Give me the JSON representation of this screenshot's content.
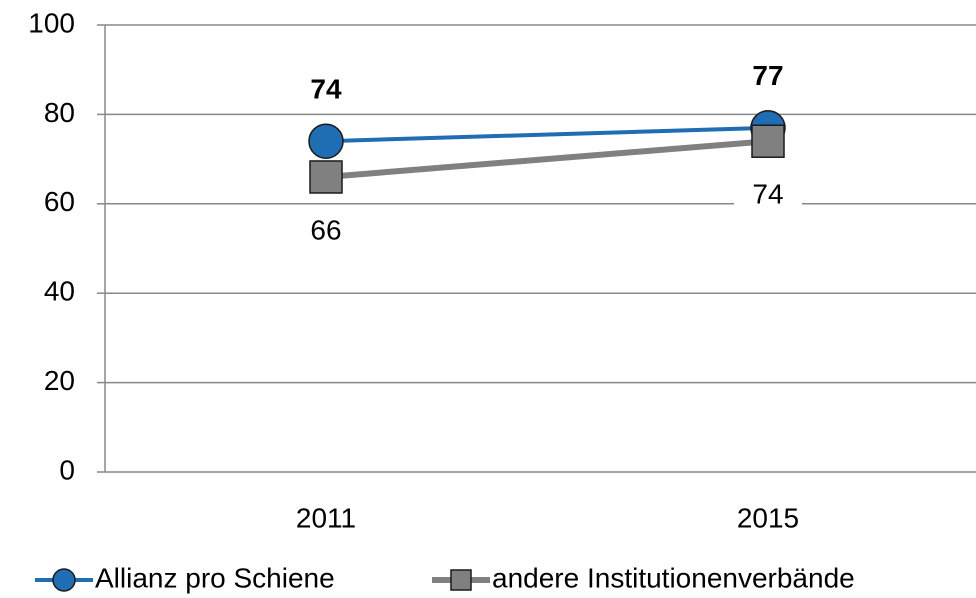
{
  "chart_data": {
    "type": "line",
    "categories": [
      "2011",
      "2015"
    ],
    "series": [
      {
        "name": "Allianz pro Schiene",
        "color": "#1f6db3",
        "marker": "circle",
        "values": [
          74,
          77
        ]
      },
      {
        "name": "andere Institutionenverbände",
        "color": "#808080",
        "marker": "square",
        "values": [
          66,
          74
        ]
      }
    ],
    "ylim": [
      0,
      100
    ],
    "yticks": [
      0,
      20,
      40,
      60,
      80,
      100
    ],
    "grid": true,
    "legend": "bottom"
  }
}
